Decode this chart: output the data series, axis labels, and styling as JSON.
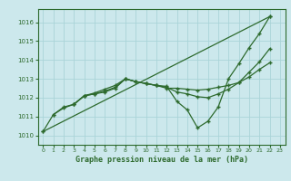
{
  "title": "Graphe pression niveau de la mer (hPa)",
  "bg_color": "#cce8ec",
  "grid_color": "#aad4d8",
  "line_color": "#2d6a2d",
  "xlim": [
    -0.5,
    23.5
  ],
  "ylim": [
    1009.5,
    1016.7
  ],
  "yticks": [
    1010,
    1011,
    1012,
    1013,
    1014,
    1015,
    1016
  ],
  "xticks": [
    0,
    1,
    2,
    3,
    4,
    5,
    6,
    7,
    8,
    9,
    10,
    11,
    12,
    13,
    14,
    15,
    16,
    17,
    18,
    19,
    20,
    21,
    22,
    23
  ],
  "series": [
    {
      "x": [
        0,
        1,
        2,
        3,
        4,
        5,
        6,
        7,
        8,
        9,
        10,
        11,
        12,
        13,
        14,
        15,
        16,
        17,
        18,
        19,
        20,
        21,
        22
      ],
      "y": [
        1010.2,
        1011.1,
        1011.5,
        1011.65,
        1012.1,
        1012.2,
        1012.3,
        1012.5,
        1013.0,
        1012.85,
        1012.75,
        1012.65,
        1012.6,
        1011.8,
        1011.35,
        1010.4,
        1010.75,
        1011.5,
        1013.0,
        1013.8,
        1014.65,
        1015.4,
        1016.3
      ]
    },
    {
      "x": [
        1,
        2,
        3,
        4,
        5,
        6,
        7,
        8,
        9,
        10,
        11,
        12,
        13,
        14,
        15,
        16,
        17,
        18,
        19,
        20,
        21,
        22
      ],
      "y": [
        1011.1,
        1011.45,
        1011.65,
        1012.1,
        1012.2,
        1012.35,
        1012.55,
        1013.0,
        1012.85,
        1012.75,
        1012.65,
        1012.5,
        1012.5,
        1012.45,
        1012.4,
        1012.45,
        1012.55,
        1012.65,
        1012.8,
        1013.1,
        1013.5,
        1013.85
      ]
    },
    {
      "x": [
        3,
        4,
        5,
        6,
        7,
        8,
        9,
        10,
        11,
        12,
        13,
        14,
        15,
        16,
        17,
        18,
        19,
        20,
        21,
        22
      ],
      "y": [
        1011.65,
        1012.1,
        1012.25,
        1012.45,
        1012.65,
        1013.0,
        1012.85,
        1012.75,
        1012.65,
        1012.55,
        1012.3,
        1012.2,
        1012.05,
        1012.0,
        1012.2,
        1012.45,
        1012.8,
        1013.35,
        1013.9,
        1014.6
      ]
    },
    {
      "x": [
        0,
        22
      ],
      "y": [
        1010.2,
        1016.3
      ]
    }
  ]
}
